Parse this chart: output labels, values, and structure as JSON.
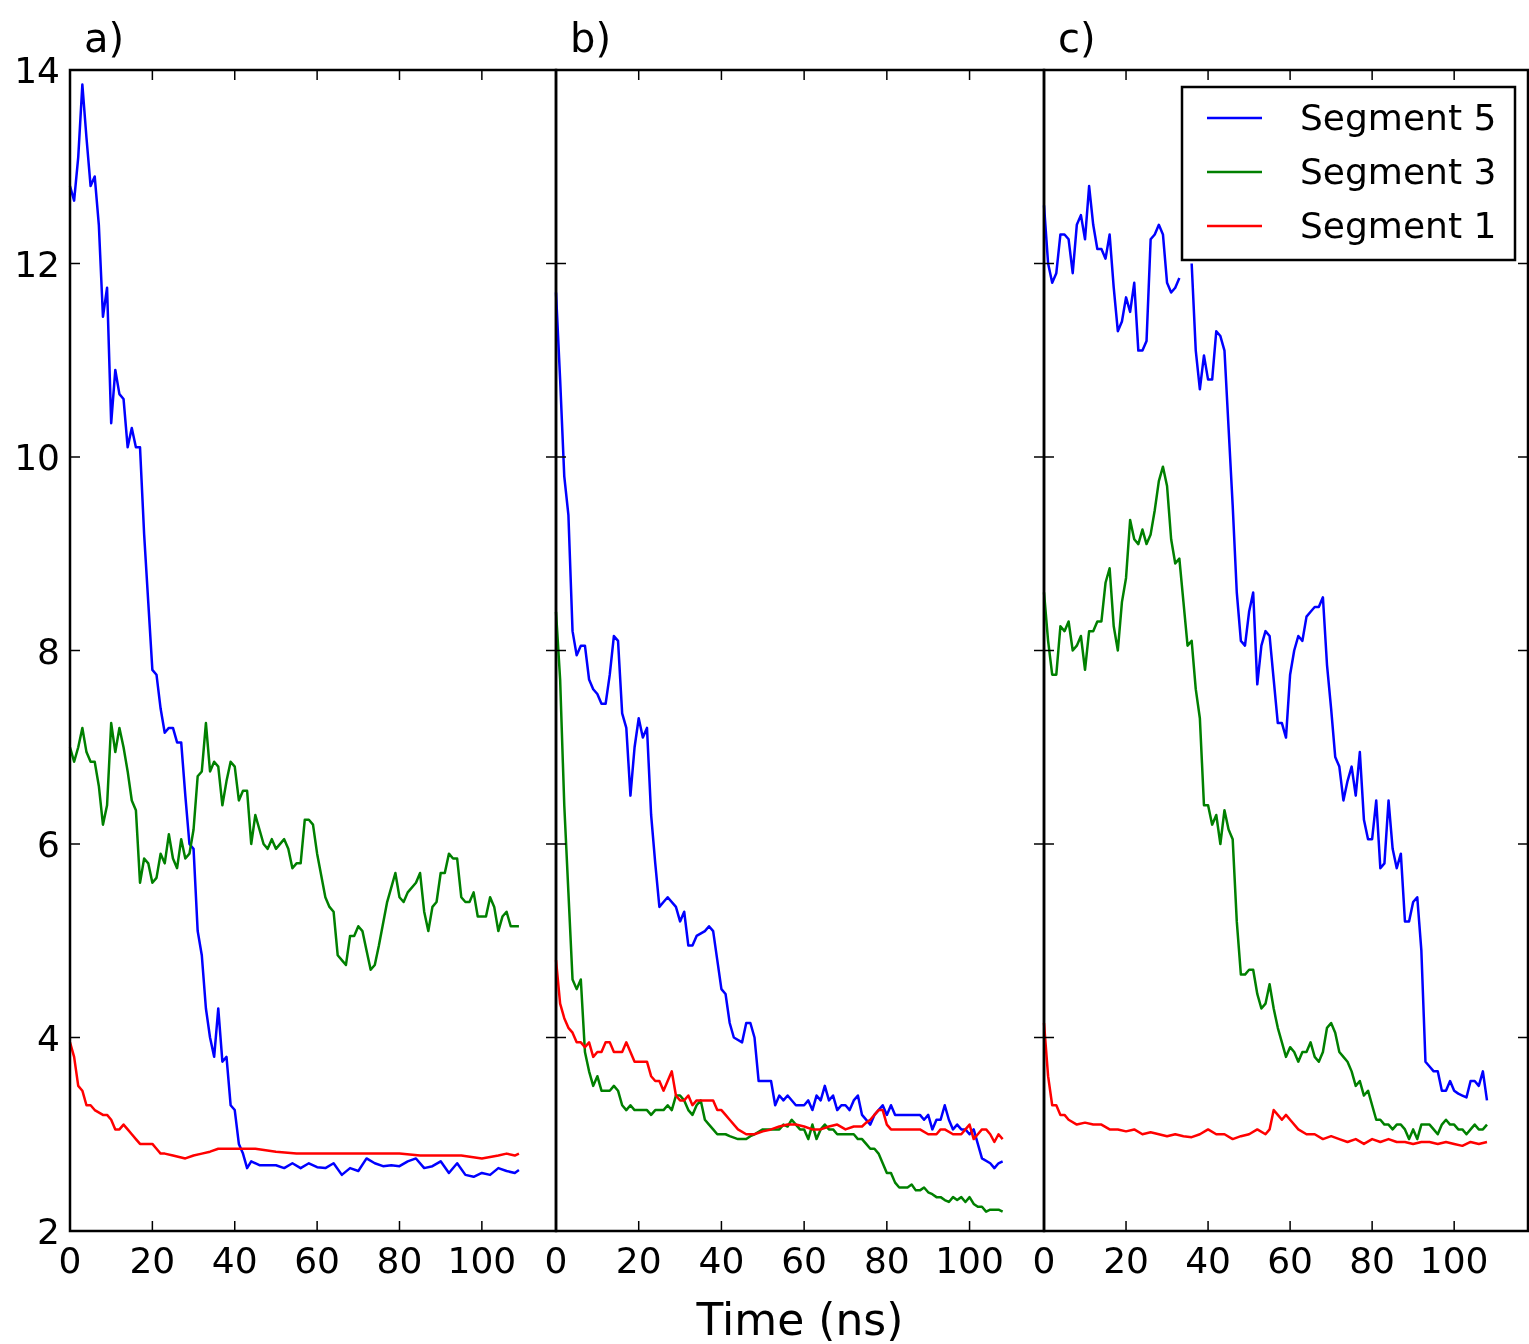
{
  "chart_data": [
    {
      "type": "line",
      "title": "a)",
      "xlim": [
        0,
        118
      ],
      "xticks": [
        0,
        20,
        40,
        60,
        80,
        100
      ],
      "ylim": [
        2,
        14
      ],
      "yticks": [
        2,
        4,
        6,
        8,
        10,
        12,
        14
      ],
      "legend": false,
      "grid": false,
      "series": [
        {
          "color": "#0000ff",
          "x": [
            0,
            1,
            2,
            3,
            4,
            5,
            6,
            7,
            8,
            9,
            10,
            11,
            12,
            13,
            14,
            15,
            16,
            17,
            18,
            19,
            20,
            21,
            22,
            23,
            24,
            25,
            26,
            27,
            28,
            29,
            30,
            31,
            32,
            33,
            34,
            35,
            36,
            37,
            38,
            39,
            40,
            41,
            42,
            43,
            44,
            46,
            50,
            52,
            54,
            56,
            58,
            60,
            62,
            64,
            66,
            68,
            70,
            72,
            74,
            76,
            78,
            80,
            82,
            84,
            86,
            88,
            90,
            92,
            94,
            96,
            98,
            100,
            102,
            104,
            106,
            108,
            109
          ],
          "values": [
            12.8,
            12.65,
            13.1,
            13.85,
            13.3,
            12.8,
            12.9,
            12.4,
            11.45,
            11.75,
            10.35,
            10.9,
            10.65,
            10.6,
            10.1,
            10.3,
            10.1,
            10.1,
            9.2,
            8.5,
            7.8,
            7.75,
            7.4,
            7.15,
            7.2,
            7.2,
            7.05,
            7.05,
            6.5,
            6.0,
            5.95,
            5.1,
            4.85,
            4.3,
            4.0,
            3.8,
            4.3,
            3.75,
            3.8,
            3.3,
            3.25,
            2.9,
            2.8,
            2.65,
            2.72,
            2.68,
            2.68,
            2.65,
            2.7,
            2.65,
            2.7,
            2.66,
            2.65,
            2.7,
            2.58,
            2.65,
            2.62,
            2.75,
            2.7,
            2.67,
            2.68,
            2.67,
            2.72,
            2.75,
            2.65,
            2.67,
            2.72,
            2.6,
            2.7,
            2.58,
            2.56,
            2.6,
            2.58,
            2.65,
            2.62,
            2.6,
            2.63
          ]
        },
        {
          "color": "#008000",
          "x": [
            0,
            1,
            2,
            3,
            4,
            5,
            6,
            7,
            8,
            9,
            10,
            11,
            12,
            13,
            14,
            15,
            16,
            17,
            18,
            19,
            20,
            21,
            22,
            23,
            24,
            25,
            26,
            27,
            28,
            29,
            30,
            31,
            32,
            33,
            34,
            35,
            36,
            37,
            38,
            39,
            40,
            41,
            42,
            43,
            44,
            45,
            46,
            47,
            48,
            49,
            50,
            52,
            53,
            54,
            55,
            56,
            57,
            58,
            59,
            60,
            62,
            63,
            64,
            65,
            66,
            67,
            68,
            69,
            70,
            71,
            72,
            73,
            74,
            75,
            77,
            78,
            79,
            80,
            81,
            82,
            84,
            85,
            86,
            87,
            88,
            89,
            90,
            91,
            92,
            93,
            94,
            95,
            96,
            97,
            98,
            99,
            100,
            101,
            102,
            103,
            104,
            105,
            106,
            107,
            108,
            109
          ],
          "values": [
            7.0,
            6.85,
            7.0,
            7.2,
            6.95,
            6.85,
            6.85,
            6.6,
            6.2,
            6.4,
            7.25,
            6.95,
            7.2,
            7.0,
            6.75,
            6.45,
            6.35,
            5.6,
            5.85,
            5.8,
            5.6,
            5.65,
            5.9,
            5.8,
            6.1,
            5.85,
            5.75,
            6.05,
            5.85,
            5.9,
            6.15,
            6.7,
            6.75,
            7.25,
            6.75,
            6.85,
            6.8,
            6.4,
            6.65,
            6.85,
            6.8,
            6.45,
            6.55,
            6.55,
            6.0,
            6.3,
            6.15,
            6.0,
            5.95,
            6.05,
            5.95,
            6.05,
            5.95,
            5.75,
            5.8,
            5.8,
            6.25,
            6.25,
            6.2,
            5.9,
            5.45,
            5.35,
            5.3,
            4.85,
            4.8,
            4.75,
            5.05,
            5.05,
            5.15,
            5.1,
            4.9,
            4.7,
            4.75,
            4.95,
            5.4,
            5.55,
            5.7,
            5.45,
            5.4,
            5.5,
            5.6,
            5.7,
            5.3,
            5.1,
            5.35,
            5.4,
            5.7,
            5.7,
            5.9,
            5.85,
            5.85,
            5.45,
            5.4,
            5.4,
            5.5,
            5.25,
            5.25,
            5.25,
            5.45,
            5.35,
            5.1,
            5.25,
            5.3,
            5.15,
            5.15,
            5.15
          ]
        },
        {
          "color": "#ff0000",
          "x": [
            0,
            1,
            2,
            3,
            4,
            5,
            6,
            8,
            9,
            10,
            11,
            12,
            13,
            14,
            15,
            16,
            17,
            20,
            21,
            22,
            23,
            25,
            28,
            30,
            32,
            34,
            36,
            40,
            45,
            50,
            55,
            60,
            65,
            70,
            75,
            80,
            85,
            90,
            95,
            100,
            104,
            106,
            108,
            109
          ],
          "values": [
            3.95,
            3.8,
            3.5,
            3.45,
            3.3,
            3.3,
            3.25,
            3.2,
            3.2,
            3.15,
            3.05,
            3.05,
            3.1,
            3.05,
            3.0,
            2.95,
            2.9,
            2.9,
            2.85,
            2.8,
            2.8,
            2.78,
            2.75,
            2.78,
            2.8,
            2.82,
            2.85,
            2.85,
            2.85,
            2.82,
            2.8,
            2.8,
            2.8,
            2.8,
            2.8,
            2.8,
            2.78,
            2.78,
            2.78,
            2.75,
            2.78,
            2.8,
            2.78,
            2.8
          ]
        }
      ]
    },
    {
      "type": "line",
      "title": "b)",
      "xlabel": "Time (ns)",
      "xlim": [
        0,
        118
      ],
      "xticks": [
        0,
        20,
        40,
        60,
        80,
        100
      ],
      "ylim": [
        2,
        14
      ],
      "yticks": [
        2,
        4,
        6,
        8,
        10,
        12,
        14
      ],
      "tick_labels": "x",
      "legend": false,
      "grid": false,
      "series": [
        {
          "color": "#0000ff",
          "x": [
            0,
            1,
            2,
            3,
            4,
            5,
            6,
            7,
            8,
            9,
            10,
            11,
            12,
            13,
            14,
            15,
            16,
            17,
            18,
            19,
            20,
            21,
            22,
            23,
            24,
            25,
            26,
            27,
            29,
            30,
            31,
            32,
            33,
            34,
            36,
            37,
            38,
            39,
            40,
            41,
            42,
            43,
            45,
            46,
            47,
            48,
            49,
            50,
            52,
            53,
            54,
            55,
            56,
            58,
            60,
            61,
            62,
            63,
            64,
            65,
            66,
            67,
            68,
            69,
            70,
            71,
            72,
            73,
            74,
            76,
            77,
            78,
            79,
            80,
            81,
            82,
            84,
            86,
            88,
            89,
            90,
            91,
            92,
            93,
            94,
            95,
            96,
            97,
            98,
            99,
            100,
            101,
            102,
            103,
            105,
            106,
            107,
            108
          ],
          "values": [
            11.7,
            10.8,
            9.8,
            9.4,
            8.2,
            7.95,
            8.05,
            8.05,
            7.7,
            7.6,
            7.55,
            7.45,
            7.45,
            7.75,
            8.15,
            8.1,
            7.35,
            7.2,
            6.5,
            7.0,
            7.3,
            7.1,
            7.2,
            6.3,
            5.8,
            5.35,
            5.4,
            5.45,
            5.35,
            5.2,
            5.3,
            4.95,
            4.95,
            5.05,
            5.1,
            5.15,
            5.1,
            4.8,
            4.5,
            4.45,
            4.15,
            4.0,
            3.95,
            4.15,
            4.15,
            4.0,
            3.55,
            3.55,
            3.55,
            3.3,
            3.4,
            3.35,
            3.4,
            3.3,
            3.3,
            3.35,
            3.25,
            3.4,
            3.35,
            3.5,
            3.35,
            3.4,
            3.25,
            3.3,
            3.3,
            3.25,
            3.35,
            3.4,
            3.2,
            3.1,
            3.2,
            3.25,
            3.3,
            3.2,
            3.3,
            3.2,
            3.2,
            3.2,
            3.2,
            3.15,
            3.2,
            3.05,
            3.15,
            3.15,
            3.3,
            3.15,
            3.05,
            3.1,
            3.05,
            3.05,
            3.0,
            3.05,
            2.9,
            2.75,
            2.7,
            2.65,
            2.7,
            2.72
          ]
        },
        {
          "color": "#008000",
          "x": [
            0,
            1,
            2,
            3,
            4,
            5,
            6,
            7,
            8,
            9,
            10,
            11,
            12,
            13,
            14,
            15,
            16,
            17,
            18,
            19,
            20,
            22,
            23,
            24,
            26,
            27,
            28,
            29,
            30,
            31,
            32,
            33,
            34,
            35,
            36,
            37,
            38,
            39,
            40,
            41,
            42,
            44,
            46,
            47,
            48,
            50,
            52,
            54,
            55,
            56,
            57,
            58,
            59,
            60,
            61,
            62,
            63,
            64,
            65,
            66,
            67,
            68,
            70,
            72,
            73,
            74,
            75,
            76,
            77,
            78,
            79,
            80,
            81,
            82,
            83,
            84,
            85,
            86,
            87,
            88,
            89,
            90,
            91,
            92,
            93,
            94,
            95,
            96,
            97,
            98,
            99,
            100,
            101,
            102,
            103,
            104,
            105,
            106,
            107,
            108
          ],
          "values": [
            8.4,
            7.7,
            6.4,
            5.5,
            4.6,
            4.5,
            4.6,
            3.85,
            3.65,
            3.5,
            3.6,
            3.45,
            3.45,
            3.45,
            3.5,
            3.45,
            3.3,
            3.25,
            3.3,
            3.25,
            3.25,
            3.25,
            3.2,
            3.25,
            3.25,
            3.3,
            3.25,
            3.4,
            3.4,
            3.35,
            3.25,
            3.2,
            3.3,
            3.35,
            3.15,
            3.1,
            3.05,
            3.0,
            3.0,
            3.0,
            2.98,
            2.95,
            2.95,
            2.98,
            3.0,
            3.05,
            3.05,
            3.05,
            3.1,
            3.08,
            3.15,
            3.1,
            3.05,
            3.05,
            2.95,
            3.1,
            2.95,
            3.05,
            3.1,
            3.05,
            3.05,
            3.0,
            3.0,
            3.0,
            2.95,
            2.95,
            2.9,
            2.85,
            2.85,
            2.8,
            2.7,
            2.6,
            2.6,
            2.5,
            2.45,
            2.45,
            2.45,
            2.48,
            2.42,
            2.42,
            2.45,
            2.4,
            2.38,
            2.35,
            2.35,
            2.32,
            2.3,
            2.35,
            2.32,
            2.35,
            2.3,
            2.35,
            2.28,
            2.25,
            2.25,
            2.2,
            2.22,
            2.22,
            2.22,
            2.2
          ]
        },
        {
          "color": "#ff0000",
          "x": [
            0,
            1,
            2,
            3,
            4,
            5,
            6,
            7,
            8,
            9,
            10,
            11,
            12,
            13,
            14,
            15,
            16,
            17,
            18,
            19,
            20,
            21,
            22,
            23,
            24,
            25,
            26,
            27,
            28,
            29,
            30,
            31,
            32,
            33,
            34,
            36,
            37,
            38,
            39,
            40,
            41,
            42,
            44,
            46,
            48,
            50,
            52,
            54,
            56,
            58,
            60,
            62,
            64,
            66,
            68,
            70,
            72,
            74,
            75,
            76,
            77,
            78,
            79,
            80,
            81,
            82,
            84,
            86,
            88,
            90,
            92,
            93,
            94,
            96,
            98,
            99,
            100,
            101,
            102,
            103,
            104,
            105,
            106,
            107,
            108
          ],
          "values": [
            4.8,
            4.35,
            4.2,
            4.1,
            4.05,
            3.95,
            3.95,
            3.9,
            3.95,
            3.8,
            3.85,
            3.85,
            3.95,
            3.95,
            3.85,
            3.85,
            3.85,
            3.95,
            3.85,
            3.75,
            3.75,
            3.75,
            3.75,
            3.6,
            3.55,
            3.55,
            3.45,
            3.55,
            3.65,
            3.4,
            3.35,
            3.35,
            3.4,
            3.3,
            3.35,
            3.35,
            3.35,
            3.35,
            3.25,
            3.25,
            3.2,
            3.15,
            3.05,
            3.0,
            3.0,
            3.03,
            3.05,
            3.08,
            3.1,
            3.1,
            3.08,
            3.05,
            3.05,
            3.08,
            3.1,
            3.05,
            3.08,
            3.08,
            3.12,
            3.15,
            3.2,
            3.25,
            3.25,
            3.1,
            3.05,
            3.05,
            3.05,
            3.05,
            3.05,
            3.0,
            3.0,
            3.05,
            3.05,
            3.0,
            3.0,
            3.05,
            3.1,
            2.95,
            3.0,
            3.05,
            3.05,
            3.0,
            2.92,
            3.0,
            2.95
          ]
        }
      ]
    },
    {
      "type": "line",
      "title": "c)",
      "xlim": [
        0,
        118
      ],
      "xticks": [
        0,
        20,
        40,
        60,
        80,
        100
      ],
      "ylim": [
        2,
        14
      ],
      "yticks": [
        2,
        4,
        6,
        8,
        10,
        12,
        14
      ],
      "tick_labels": "x",
      "legend": "top right",
      "grid": false,
      "series": [
        {
          "name": "Segment 5",
          "color": "#0000ff",
          "x": [
            0,
            1,
            2,
            3,
            4,
            5,
            6,
            7,
            8,
            9,
            10,
            11,
            12,
            13,
            14,
            15,
            16,
            17,
            18,
            19,
            20,
            21,
            22,
            23,
            24,
            25,
            26,
            27,
            28,
            29,
            30,
            31,
            32,
            33,
            34,
            35,
            36,
            37,
            38,
            39,
            40,
            41,
            42,
            43,
            44,
            45,
            46,
            47,
            48,
            49,
            50,
            51,
            52,
            53,
            54,
            55,
            56,
            57,
            58,
            59,
            60,
            61,
            62,
            63,
            64,
            65,
            66,
            67,
            68,
            69,
            70,
            71,
            72,
            73,
            74,
            75,
            76,
            77,
            78,
            79,
            80,
            81,
            82,
            83,
            84,
            85,
            86,
            87,
            88,
            89,
            90,
            91,
            92,
            93,
            94,
            95,
            96,
            97,
            98,
            99,
            100,
            101,
            102,
            103,
            104,
            105,
            106,
            107,
            108
          ],
          "values": [
            12.6,
            12.0,
            11.8,
            11.9,
            12.3,
            12.3,
            12.25,
            11.9,
            12.4,
            12.5,
            12.25,
            12.8,
            12.4,
            12.15,
            12.15,
            12.05,
            12.3,
            11.75,
            11.3,
            11.4,
            11.65,
            11.5,
            11.8,
            11.1,
            11.1,
            11.2,
            12.25,
            12.3,
            12.4,
            12.3,
            11.8,
            11.7,
            11.75,
            11.85,
            null,
            null,
            12.0,
            11.1,
            10.7,
            11.05,
            10.8,
            10.8,
            11.3,
            11.25,
            11.1,
            10.3,
            9.5,
            8.6,
            8.1,
            8.05,
            8.4,
            8.6,
            7.65,
            8.05,
            8.2,
            8.15,
            7.7,
            7.25,
            7.25,
            7.1,
            7.75,
            8.0,
            8.15,
            8.1,
            8.35,
            8.4,
            8.45,
            8.45,
            8.55,
            7.85,
            7.4,
            6.9,
            6.8,
            6.45,
            6.65,
            6.8,
            6.5,
            6.95,
            6.25,
            6.05,
            6.05,
            6.45,
            5.75,
            5.8,
            6.45,
            5.95,
            5.75,
            5.9,
            5.2,
            5.2,
            5.4,
            5.45,
            4.9,
            3.75,
            3.7,
            3.65,
            3.65,
            3.45,
            3.45,
            3.55,
            3.45,
            3.42,
            3.4,
            3.38,
            3.55,
            3.55,
            3.5,
            3.65,
            3.35
          ]
        },
        {
          "name": "Segment 3",
          "color": "#008000",
          "x": [
            0,
            1,
            2,
            3,
            4,
            5,
            6,
            7,
            8,
            9,
            10,
            11,
            12,
            13,
            14,
            15,
            16,
            17,
            18,
            19,
            20,
            21,
            22,
            23,
            24,
            25,
            26,
            27,
            28,
            29,
            30,
            31,
            32,
            33,
            34,
            35,
            36,
            37,
            38,
            39,
            40,
            41,
            42,
            43,
            44,
            45,
            46,
            47,
            48,
            49,
            50,
            51,
            52,
            53,
            54,
            55,
            56,
            57,
            58,
            59,
            60,
            61,
            62,
            63,
            64,
            65,
            66,
            67,
            68,
            69,
            70,
            71,
            72,
            73,
            74,
            75,
            76,
            77,
            78,
            79,
            80,
            81,
            82,
            83,
            84,
            85,
            86,
            87,
            88,
            89,
            90,
            91,
            92,
            93,
            94,
            95,
            96,
            97,
            98,
            99,
            100,
            101,
            102,
            103,
            104,
            105,
            106,
            107,
            108
          ],
          "values": [
            8.6,
            8.1,
            7.75,
            7.75,
            8.25,
            8.2,
            8.3,
            8.0,
            8.05,
            8.15,
            7.8,
            8.2,
            8.2,
            8.3,
            8.3,
            8.7,
            8.85,
            8.25,
            8.0,
            8.5,
            8.75,
            9.35,
            9.15,
            9.1,
            9.25,
            9.1,
            9.2,
            9.45,
            9.75,
            9.9,
            9.7,
            9.15,
            8.9,
            8.95,
            8.5,
            8.05,
            8.1,
            7.6,
            7.3,
            6.4,
            6.4,
            6.2,
            6.3,
            6.0,
            6.35,
            6.15,
            6.05,
            5.2,
            4.65,
            4.65,
            4.7,
            4.7,
            4.45,
            4.3,
            4.35,
            4.55,
            4.3,
            4.1,
            3.95,
            3.8,
            3.9,
            3.85,
            3.75,
            3.85,
            3.85,
            3.95,
            3.8,
            3.75,
            3.85,
            4.1,
            4.15,
            4.05,
            3.85,
            3.8,
            3.75,
            3.65,
            3.5,
            3.55,
            3.4,
            3.45,
            3.3,
            3.15,
            3.15,
            3.1,
            3.1,
            3.05,
            3.1,
            3.1,
            3.05,
            2.95,
            3.05,
            2.95,
            3.1,
            3.1,
            3.1,
            3.05,
            3.0,
            3.1,
            3.15,
            3.1,
            3.1,
            3.05,
            3.05,
            3.0,
            3.05,
            3.1,
            3.05,
            3.05,
            3.1
          ]
        },
        {
          "name": "Segment 1",
          "color": "#ff0000",
          "x": [
            0,
            1,
            2,
            3,
            4,
            5,
            6,
            8,
            10,
            12,
            14,
            16,
            18,
            20,
            22,
            24,
            26,
            28,
            30,
            32,
            34,
            36,
            38,
            40,
            42,
            44,
            46,
            48,
            50,
            52,
            54,
            55,
            56,
            57,
            58,
            59,
            60,
            62,
            64,
            66,
            68,
            70,
            72,
            74,
            76,
            78,
            80,
            82,
            84,
            86,
            88,
            90,
            92,
            94,
            96,
            98,
            100,
            102,
            104,
            106,
            108
          ],
          "values": [
            4.15,
            3.6,
            3.3,
            3.3,
            3.2,
            3.2,
            3.15,
            3.1,
            3.12,
            3.1,
            3.1,
            3.05,
            3.05,
            3.03,
            3.05,
            3.0,
            3.02,
            3.0,
            2.98,
            3.0,
            2.98,
            2.97,
            3.0,
            3.05,
            3.0,
            3.0,
            2.95,
            2.98,
            3.0,
            3.05,
            3.0,
            3.05,
            3.25,
            3.2,
            3.15,
            3.2,
            3.15,
            3.05,
            3.0,
            3.0,
            2.95,
            2.98,
            2.95,
            2.92,
            2.95,
            2.9,
            2.95,
            2.92,
            2.95,
            2.92,
            2.92,
            2.9,
            2.92,
            2.92,
            2.9,
            2.92,
            2.9,
            2.88,
            2.92,
            2.9,
            2.92
          ]
        }
      ]
    }
  ]
}
